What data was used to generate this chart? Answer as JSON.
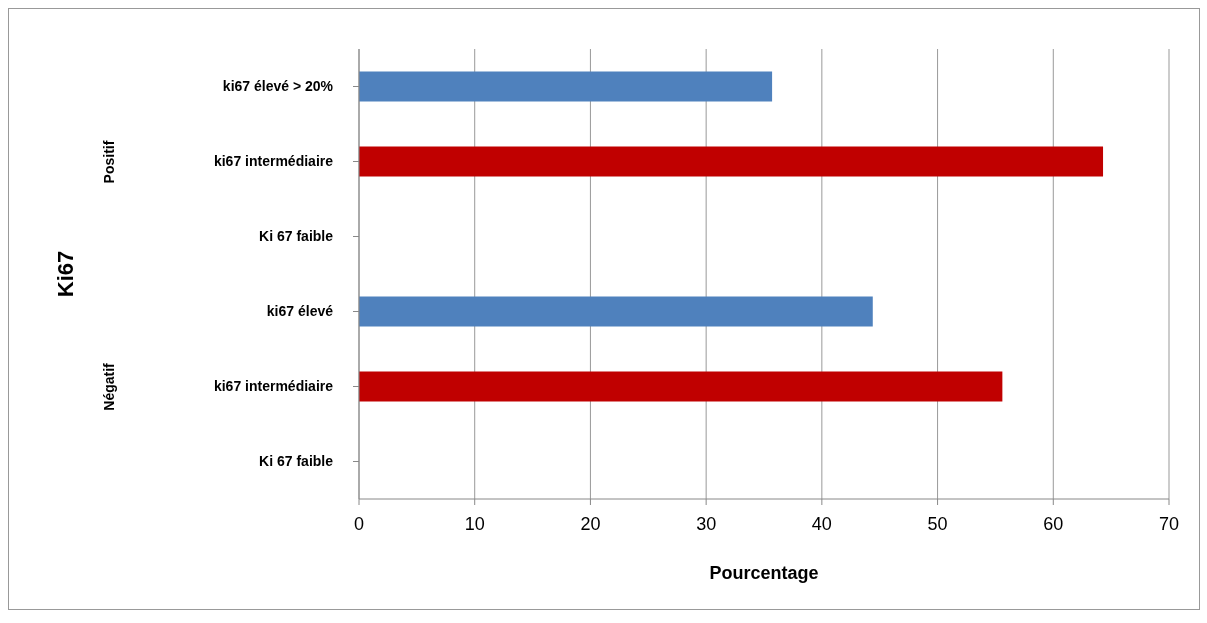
{
  "chart_data": {
    "type": "bar",
    "orientation": "horizontal",
    "xlabel": "Pourcentage",
    "categories": [
      "ki67 élevé > 20%",
      "ki67 intermédiaire",
      "Ki 67 faible",
      "ki67 élevé",
      "ki67 intermédiaire",
      "Ki 67 faible"
    ],
    "values": [
      35.7,
      64.3,
      0,
      44.4,
      55.6,
      0
    ],
    "colors": [
      "#4f81bd",
      "#c00000",
      "#4f81bd",
      "#4f81bd",
      "#c00000",
      "#4f81bd"
    ],
    "xlim": [
      0,
      70
    ],
    "xticks": [
      0,
      10,
      20,
      30,
      40,
      50,
      60,
      70
    ],
    "grid": "x",
    "legend": false,
    "annotations": [
      "Ki67",
      "Positif",
      "Négatif"
    ]
  }
}
